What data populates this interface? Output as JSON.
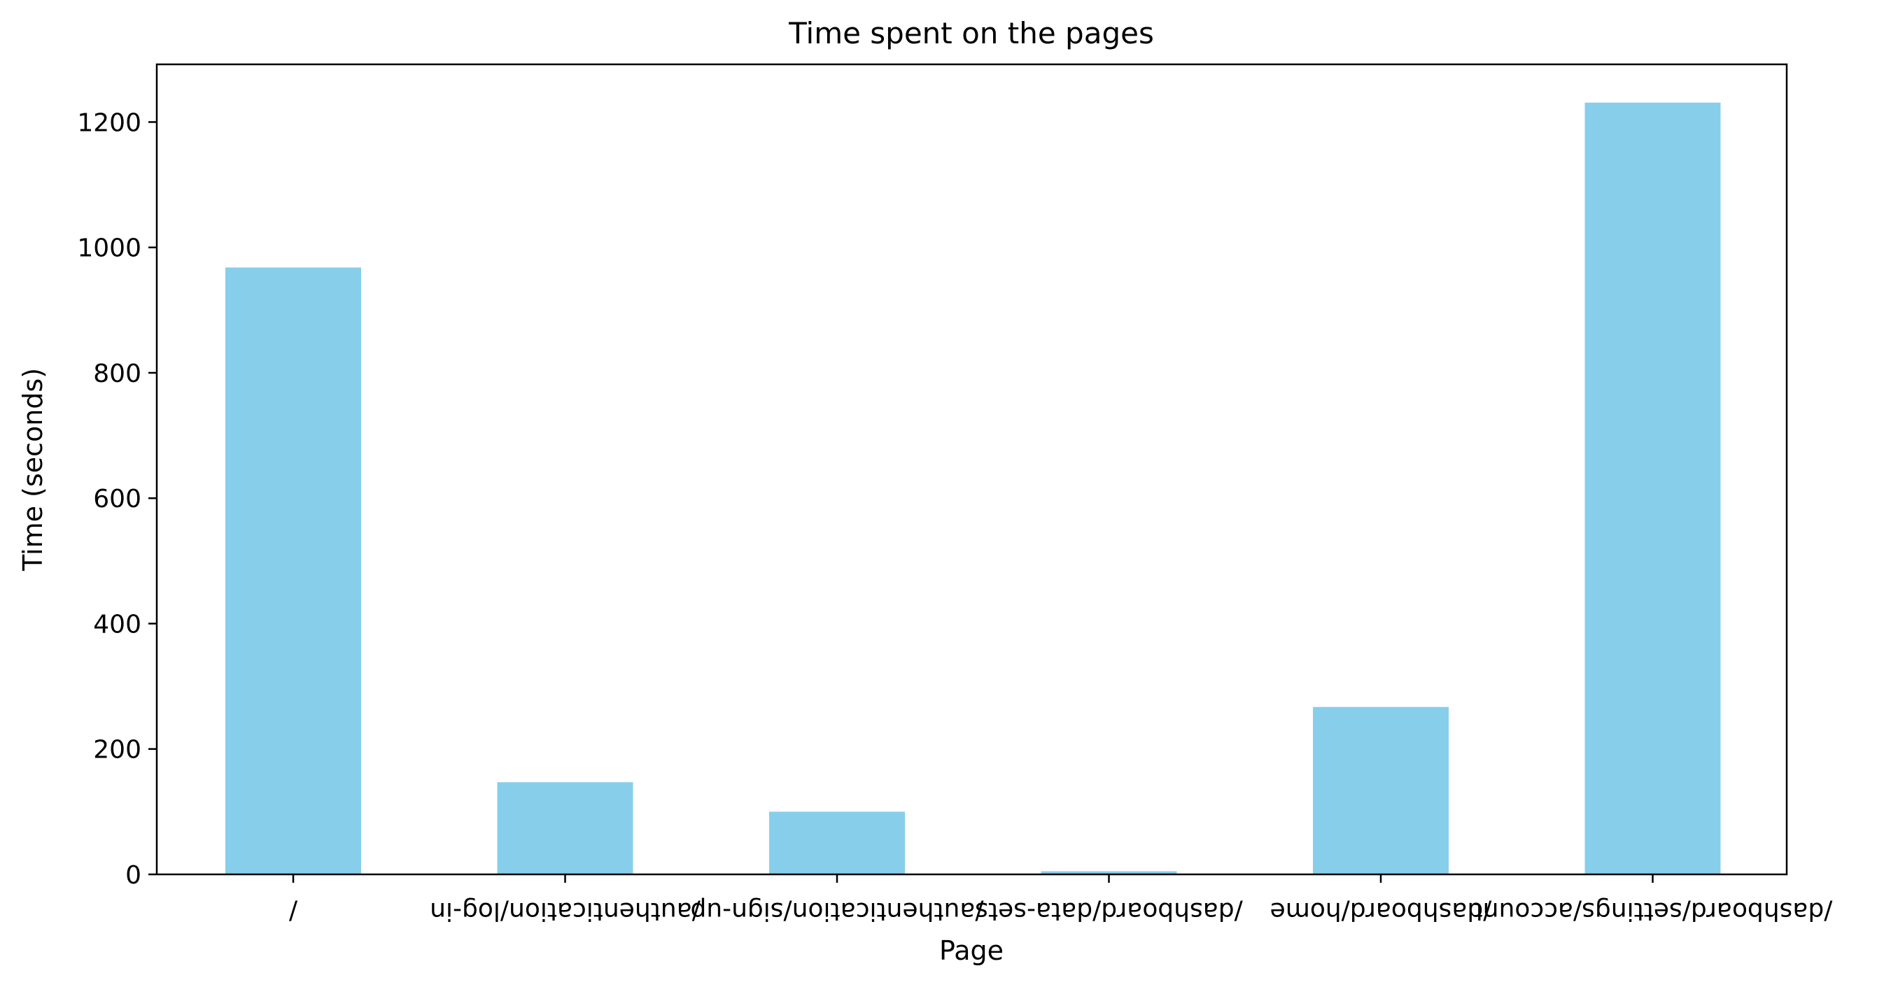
{
  "chart_data": {
    "type": "bar",
    "title": "Time spent on the pages",
    "xlabel": "Page",
    "ylabel": "Time (seconds)",
    "categories": [
      "/",
      "/authentication/log-in",
      "/authentication/sign-up",
      "/dashboard/data-sets",
      "/dashboard/home",
      "/dashboard/settings/account"
    ],
    "values": [
      968,
      147,
      100,
      5,
      267,
      1231
    ],
    "ylim": [
      0,
      1292
    ],
    "yticks": [
      0,
      200,
      400,
      600,
      800,
      1000,
      1200
    ],
    "bar_color": "#87CEEB",
    "tick_labels_rotated": "upside-down",
    "grid": false,
    "legend": "none"
  }
}
